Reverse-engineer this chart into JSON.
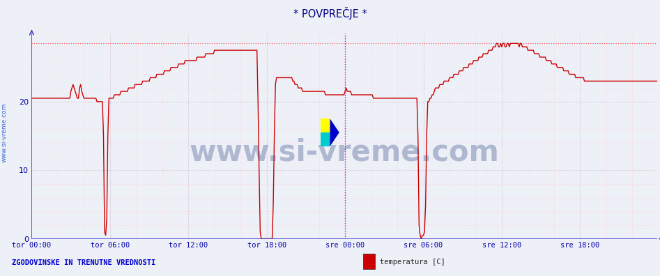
{
  "title": "* POVPREČJE *",
  "title_color": "#000080",
  "bg_color": "#eef0f8",
  "plot_bg_color": "#eef0f8",
  "axis_color": "#4444cc",
  "line_color": "#cc0000",
  "max_line_color": "#ff4444",
  "vline_color": "#cc00cc",
  "ylim": [
    0,
    30
  ],
  "yticks": [
    0,
    10,
    20
  ],
  "xtick_labels": [
    "tor 00:00",
    "tor 06:00",
    "tor 12:00",
    "tor 18:00",
    "sre 00:00",
    "sre 06:00",
    "sre 12:00",
    "sre 18:00"
  ],
  "watermark": "www.si-vreme.com",
  "watermark_color": "#1a3a7a",
  "bottom_left_text": "ZGODOVINSKE IN TRENUTNE VREDNOSTI",
  "bottom_left_color": "#0000cc",
  "legend_label": "temperatura [C]",
  "legend_color": "#cc0000",
  "sidebar_text": "www.si-vreme.com",
  "sidebar_color": "#3366cc",
  "max_temp": 28.5,
  "n_points": 576,
  "grid_minor_color": "#ffcccc",
  "grid_major_color": "#ccccdd"
}
